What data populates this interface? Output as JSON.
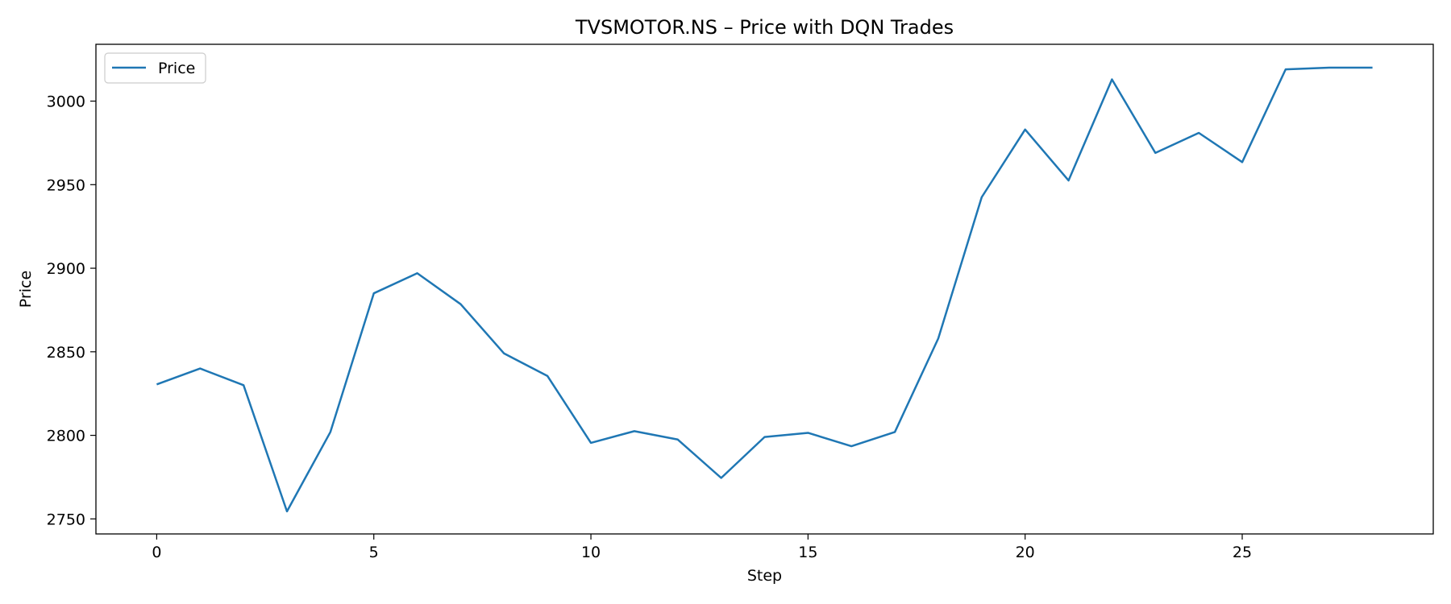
{
  "chart_data": {
    "type": "line",
    "title": "TVSMOTOR.NS – Price with DQN Trades",
    "xlabel": "Step",
    "ylabel": "Price",
    "xlim": [
      -1.4,
      29.4
    ],
    "ylim": [
      2741,
      3034
    ],
    "xticks": [
      0,
      5,
      10,
      15,
      20,
      25
    ],
    "yticks": [
      2750,
      2800,
      2850,
      2900,
      2950,
      3000
    ],
    "grid": false,
    "legend": {
      "position": "top-left",
      "entries": [
        "Price"
      ]
    },
    "colors": {
      "line": "#1f77b4",
      "axes": "#000000",
      "legend_border": "#cccccc"
    },
    "series": [
      {
        "name": "Price",
        "x": [
          0,
          1,
          2,
          3,
          4,
          5,
          6,
          7,
          8,
          9,
          10,
          11,
          12,
          13,
          14,
          15,
          16,
          17,
          18,
          19,
          20,
          21,
          22,
          23,
          24,
          25,
          26,
          27,
          28
        ],
        "values": [
          2830.5,
          2840,
          2830,
          2754.5,
          2802,
          2885,
          2897,
          2878.5,
          2849,
          2835.5,
          2795.5,
          2802.5,
          2797.5,
          2774.5,
          2799,
          2801.5,
          2793.5,
          2802,
          2858,
          2942.5,
          2983,
          2952.5,
          3013,
          2969,
          2981,
          2963.5,
          3019,
          3020,
          3020
        ]
      }
    ]
  }
}
